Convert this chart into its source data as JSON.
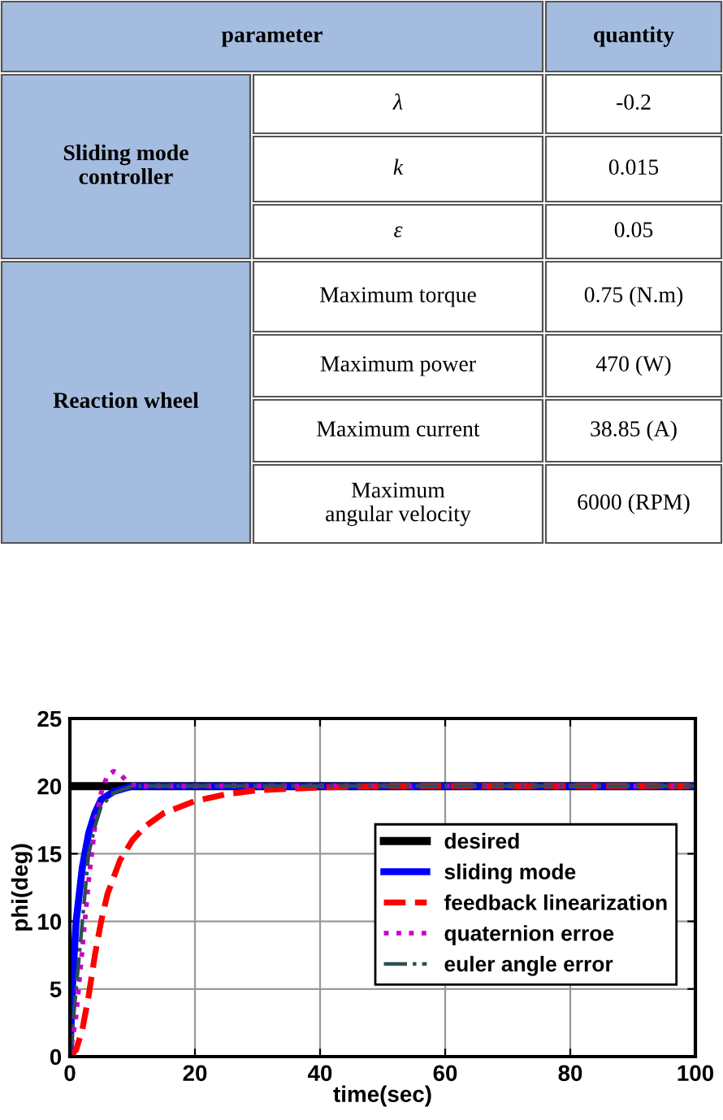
{
  "chart_data": [
    {
      "type": "other",
      "annotations": [
        "parameter",
        "quantity",
        "Sliding mode\ncontroller",
        "λ",
        "-0.2",
        "k",
        "0.015",
        "ε",
        "0.05",
        "Reaction wheel",
        "Maximum torque",
        "0.75 (N.m)",
        "Maximum power",
        "470 (W)",
        "Maximum current",
        "38.85 (A)",
        "Maximum\nangular velocity",
        "6000 (RPM)"
      ]
    },
    {
      "type": "line",
      "xlabel": "time(sec)",
      "ylabel": "phi(deg)",
      "xlim": [
        0,
        100
      ],
      "ylim": [
        0,
        25
      ],
      "xticks": [
        0,
        20,
        40,
        60,
        80,
        100
      ],
      "yticks": [
        0,
        5,
        10,
        15,
        20,
        25
      ],
      "grid": true,
      "legend": "right",
      "series": [
        {
          "name": "desired",
          "color": "#000000",
          "line_style": "solid",
          "x": [
            0,
            100
          ],
          "values": [
            20,
            20
          ]
        },
        {
          "name": "sliding mode",
          "color": "#0000ff",
          "line_style": "solid",
          "x": [
            0,
            0.5,
            1,
            2,
            3,
            4,
            5,
            7,
            10,
            100
          ],
          "values": [
            0,
            6,
            10,
            14,
            16.5,
            18,
            19,
            19.6,
            20,
            20
          ]
        },
        {
          "name": "feedback linearization",
          "color": "#ff0000",
          "line_style": "dashed",
          "x": [
            0,
            1,
            2,
            3,
            4,
            5,
            6,
            8,
            10,
            12,
            15,
            20,
            25,
            30,
            40,
            50,
            100
          ],
          "values": [
            0,
            0.5,
            2,
            4.5,
            7.5,
            10,
            12,
            14.5,
            16,
            17,
            18,
            18.9,
            19.4,
            19.7,
            19.9,
            20,
            20
          ]
        },
        {
          "name": "quaternion erroe",
          "color": "#cc00cc",
          "line_style": "dotted",
          "x": [
            0,
            1,
            2,
            3,
            4,
            5,
            6,
            7,
            8,
            9,
            10,
            12,
            100
          ],
          "values": [
            0,
            3,
            8,
            13,
            17,
            19.5,
            20.8,
            21.1,
            20.9,
            20.4,
            20.1,
            20,
            20
          ]
        },
        {
          "name": "euler angle error",
          "color": "#2f4f4f",
          "line_style": "dashdot",
          "x": [
            0,
            1,
            2,
            3,
            4,
            5,
            7,
            10,
            100
          ],
          "values": [
            0,
            5,
            10,
            15,
            17,
            18.5,
            19.5,
            20,
            20
          ]
        }
      ]
    }
  ]
}
